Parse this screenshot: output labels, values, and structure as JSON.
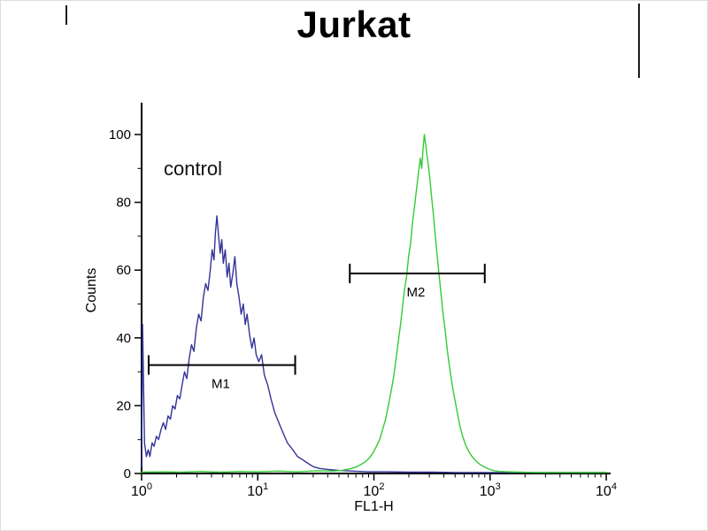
{
  "chart_data": {
    "type": "line",
    "title": "Jurkat",
    "xlabel": "FL1-H",
    "ylabel": "Counts",
    "grid": false,
    "x_axis": {
      "scale": "log",
      "min": 1,
      "max": 10000,
      "ticks": [
        1,
        10,
        100,
        1000,
        10000
      ],
      "tick_labels": [
        "10^0",
        "10^1",
        "10^2",
        "10^3",
        "10^4"
      ]
    },
    "y_axis": {
      "min": 0,
      "max": 100,
      "ticks": [
        0,
        20,
        40,
        60,
        80,
        100
      ],
      "minor_step": 10
    },
    "annotations": [
      {
        "text": "control",
        "x": 1.55,
        "y": 88
      }
    ],
    "markers": [
      {
        "label": "M1",
        "y": 32,
        "x_from": 1.15,
        "x_to": 21,
        "label_x": 4.8
      },
      {
        "label": "M2",
        "y": 59,
        "x_from": 62,
        "x_to": 900,
        "label_x": 230
      }
    ],
    "series": [
      {
        "name": "control",
        "color": "#333399",
        "points": [
          [
            1.0,
            2
          ],
          [
            1.02,
            44
          ],
          [
            1.04,
            26
          ],
          [
            1.06,
            9
          ],
          [
            1.1,
            5
          ],
          [
            1.14,
            7
          ],
          [
            1.18,
            5
          ],
          [
            1.23,
            9
          ],
          [
            1.28,
            8
          ],
          [
            1.34,
            11
          ],
          [
            1.4,
            10
          ],
          [
            1.47,
            13
          ],
          [
            1.54,
            15
          ],
          [
            1.61,
            13
          ],
          [
            1.69,
            17
          ],
          [
            1.77,
            16
          ],
          [
            1.85,
            20
          ],
          [
            1.94,
            19
          ],
          [
            2.03,
            23
          ],
          [
            2.13,
            22
          ],
          [
            2.23,
            26
          ],
          [
            2.34,
            30
          ],
          [
            2.45,
            28
          ],
          [
            2.57,
            34
          ],
          [
            2.69,
            38
          ],
          [
            2.82,
            36
          ],
          [
            2.96,
            43
          ],
          [
            3.1,
            47
          ],
          [
            3.25,
            45
          ],
          [
            3.4,
            52
          ],
          [
            3.56,
            56
          ],
          [
            3.73,
            54
          ],
          [
            3.9,
            60
          ],
          [
            4.05,
            66
          ],
          [
            4.2,
            63
          ],
          [
            4.32,
            71
          ],
          [
            4.45,
            76
          ],
          [
            4.6,
            70
          ],
          [
            4.75,
            65
          ],
          [
            4.9,
            69
          ],
          [
            5.05,
            62
          ],
          [
            5.25,
            66
          ],
          [
            5.45,
            58
          ],
          [
            5.65,
            62
          ],
          [
            5.85,
            55
          ],
          [
            6.1,
            59
          ],
          [
            6.35,
            64
          ],
          [
            6.6,
            56
          ],
          [
            6.9,
            52
          ],
          [
            7.2,
            47
          ],
          [
            7.5,
            50
          ],
          [
            7.8,
            44
          ],
          [
            8.1,
            47
          ],
          [
            8.5,
            41
          ],
          [
            8.9,
            37
          ],
          [
            9.3,
            40
          ],
          [
            9.7,
            35
          ],
          [
            10.2,
            33
          ],
          [
            10.8,
            35
          ],
          [
            11.4,
            29
          ],
          [
            12.2,
            26
          ],
          [
            13.0,
            22
          ],
          [
            14.0,
            18
          ],
          [
            15.2,
            15
          ],
          [
            16.5,
            12
          ],
          [
            18.0,
            9
          ],
          [
            20.0,
            7
          ],
          [
            22.0,
            5
          ],
          [
            24.5,
            4
          ],
          [
            27.0,
            3
          ],
          [
            30.0,
            2
          ],
          [
            34.0,
            1.5
          ],
          [
            40.0,
            1.2
          ],
          [
            50.0,
            0.9
          ],
          [
            65.0,
            0.7
          ],
          [
            90.0,
            0.5
          ],
          [
            130,
            0.5
          ],
          [
            200,
            0.4
          ],
          [
            320,
            0.4
          ],
          [
            500,
            0.3
          ],
          [
            800,
            0.3
          ],
          [
            1500,
            0.3
          ],
          [
            3000,
            0.3
          ],
          [
            6000,
            0.3
          ],
          [
            10000,
            0.3
          ]
        ]
      },
      {
        "name": "green",
        "color": "#33cc33",
        "points": [
          [
            1.0,
            0.4
          ],
          [
            1.5,
            0.5
          ],
          [
            2.2,
            0.4
          ],
          [
            3.2,
            0.6
          ],
          [
            4.7,
            0.4
          ],
          [
            7.0,
            0.6
          ],
          [
            10,
            0.5
          ],
          [
            15,
            0.7
          ],
          [
            22,
            0.5
          ],
          [
            32,
            0.8
          ],
          [
            45,
            0.7
          ],
          [
            55,
            1.0
          ],
          [
            63,
            1.4
          ],
          [
            70,
            1.9
          ],
          [
            77,
            2.6
          ],
          [
            84,
            3.4
          ],
          [
            91,
            4.5
          ],
          [
            98,
            6
          ],
          [
            105,
            8
          ],
          [
            112,
            10
          ],
          [
            119,
            13
          ],
          [
            126,
            16
          ],
          [
            133,
            20
          ],
          [
            140,
            24
          ],
          [
            147,
            28
          ],
          [
            154,
            33
          ],
          [
            161,
            38
          ],
          [
            168,
            43
          ],
          [
            175,
            48
          ],
          [
            183,
            54
          ],
          [
            191,
            58
          ],
          [
            199,
            64
          ],
          [
            207,
            68
          ],
          [
            215,
            74
          ],
          [
            224,
            79
          ],
          [
            233,
            84
          ],
          [
            242,
            89
          ],
          [
            251,
            93
          ],
          [
            258,
            90
          ],
          [
            265,
            96
          ],
          [
            272,
            100
          ],
          [
            279,
            97
          ],
          [
            286,
            94
          ],
          [
            294,
            91
          ],
          [
            303,
            87
          ],
          [
            313,
            82
          ],
          [
            324,
            77
          ],
          [
            336,
            71
          ],
          [
            349,
            65
          ],
          [
            363,
            59
          ],
          [
            378,
            53
          ],
          [
            394,
            47
          ],
          [
            411,
            42
          ],
          [
            430,
            36
          ],
          [
            450,
            31
          ],
          [
            472,
            26
          ],
          [
            496,
            22
          ],
          [
            522,
            18
          ],
          [
            550,
            14
          ],
          [
            580,
            11
          ],
          [
            615,
            8.5
          ],
          [
            655,
            6.5
          ],
          [
            700,
            5
          ],
          [
            750,
            3.8
          ],
          [
            810,
            2.8
          ],
          [
            880,
            2
          ],
          [
            960,
            1.4
          ],
          [
            1060,
            0.9
          ],
          [
            1200,
            0.6
          ],
          [
            1400,
            0.5
          ],
          [
            1800,
            0.4
          ],
          [
            2500,
            0.3
          ],
          [
            4000,
            0.3
          ],
          [
            7000,
            0.3
          ],
          [
            10000,
            0.3
          ]
        ]
      }
    ],
    "colors": {
      "axis": "#000000",
      "text": "#000000"
    }
  }
}
